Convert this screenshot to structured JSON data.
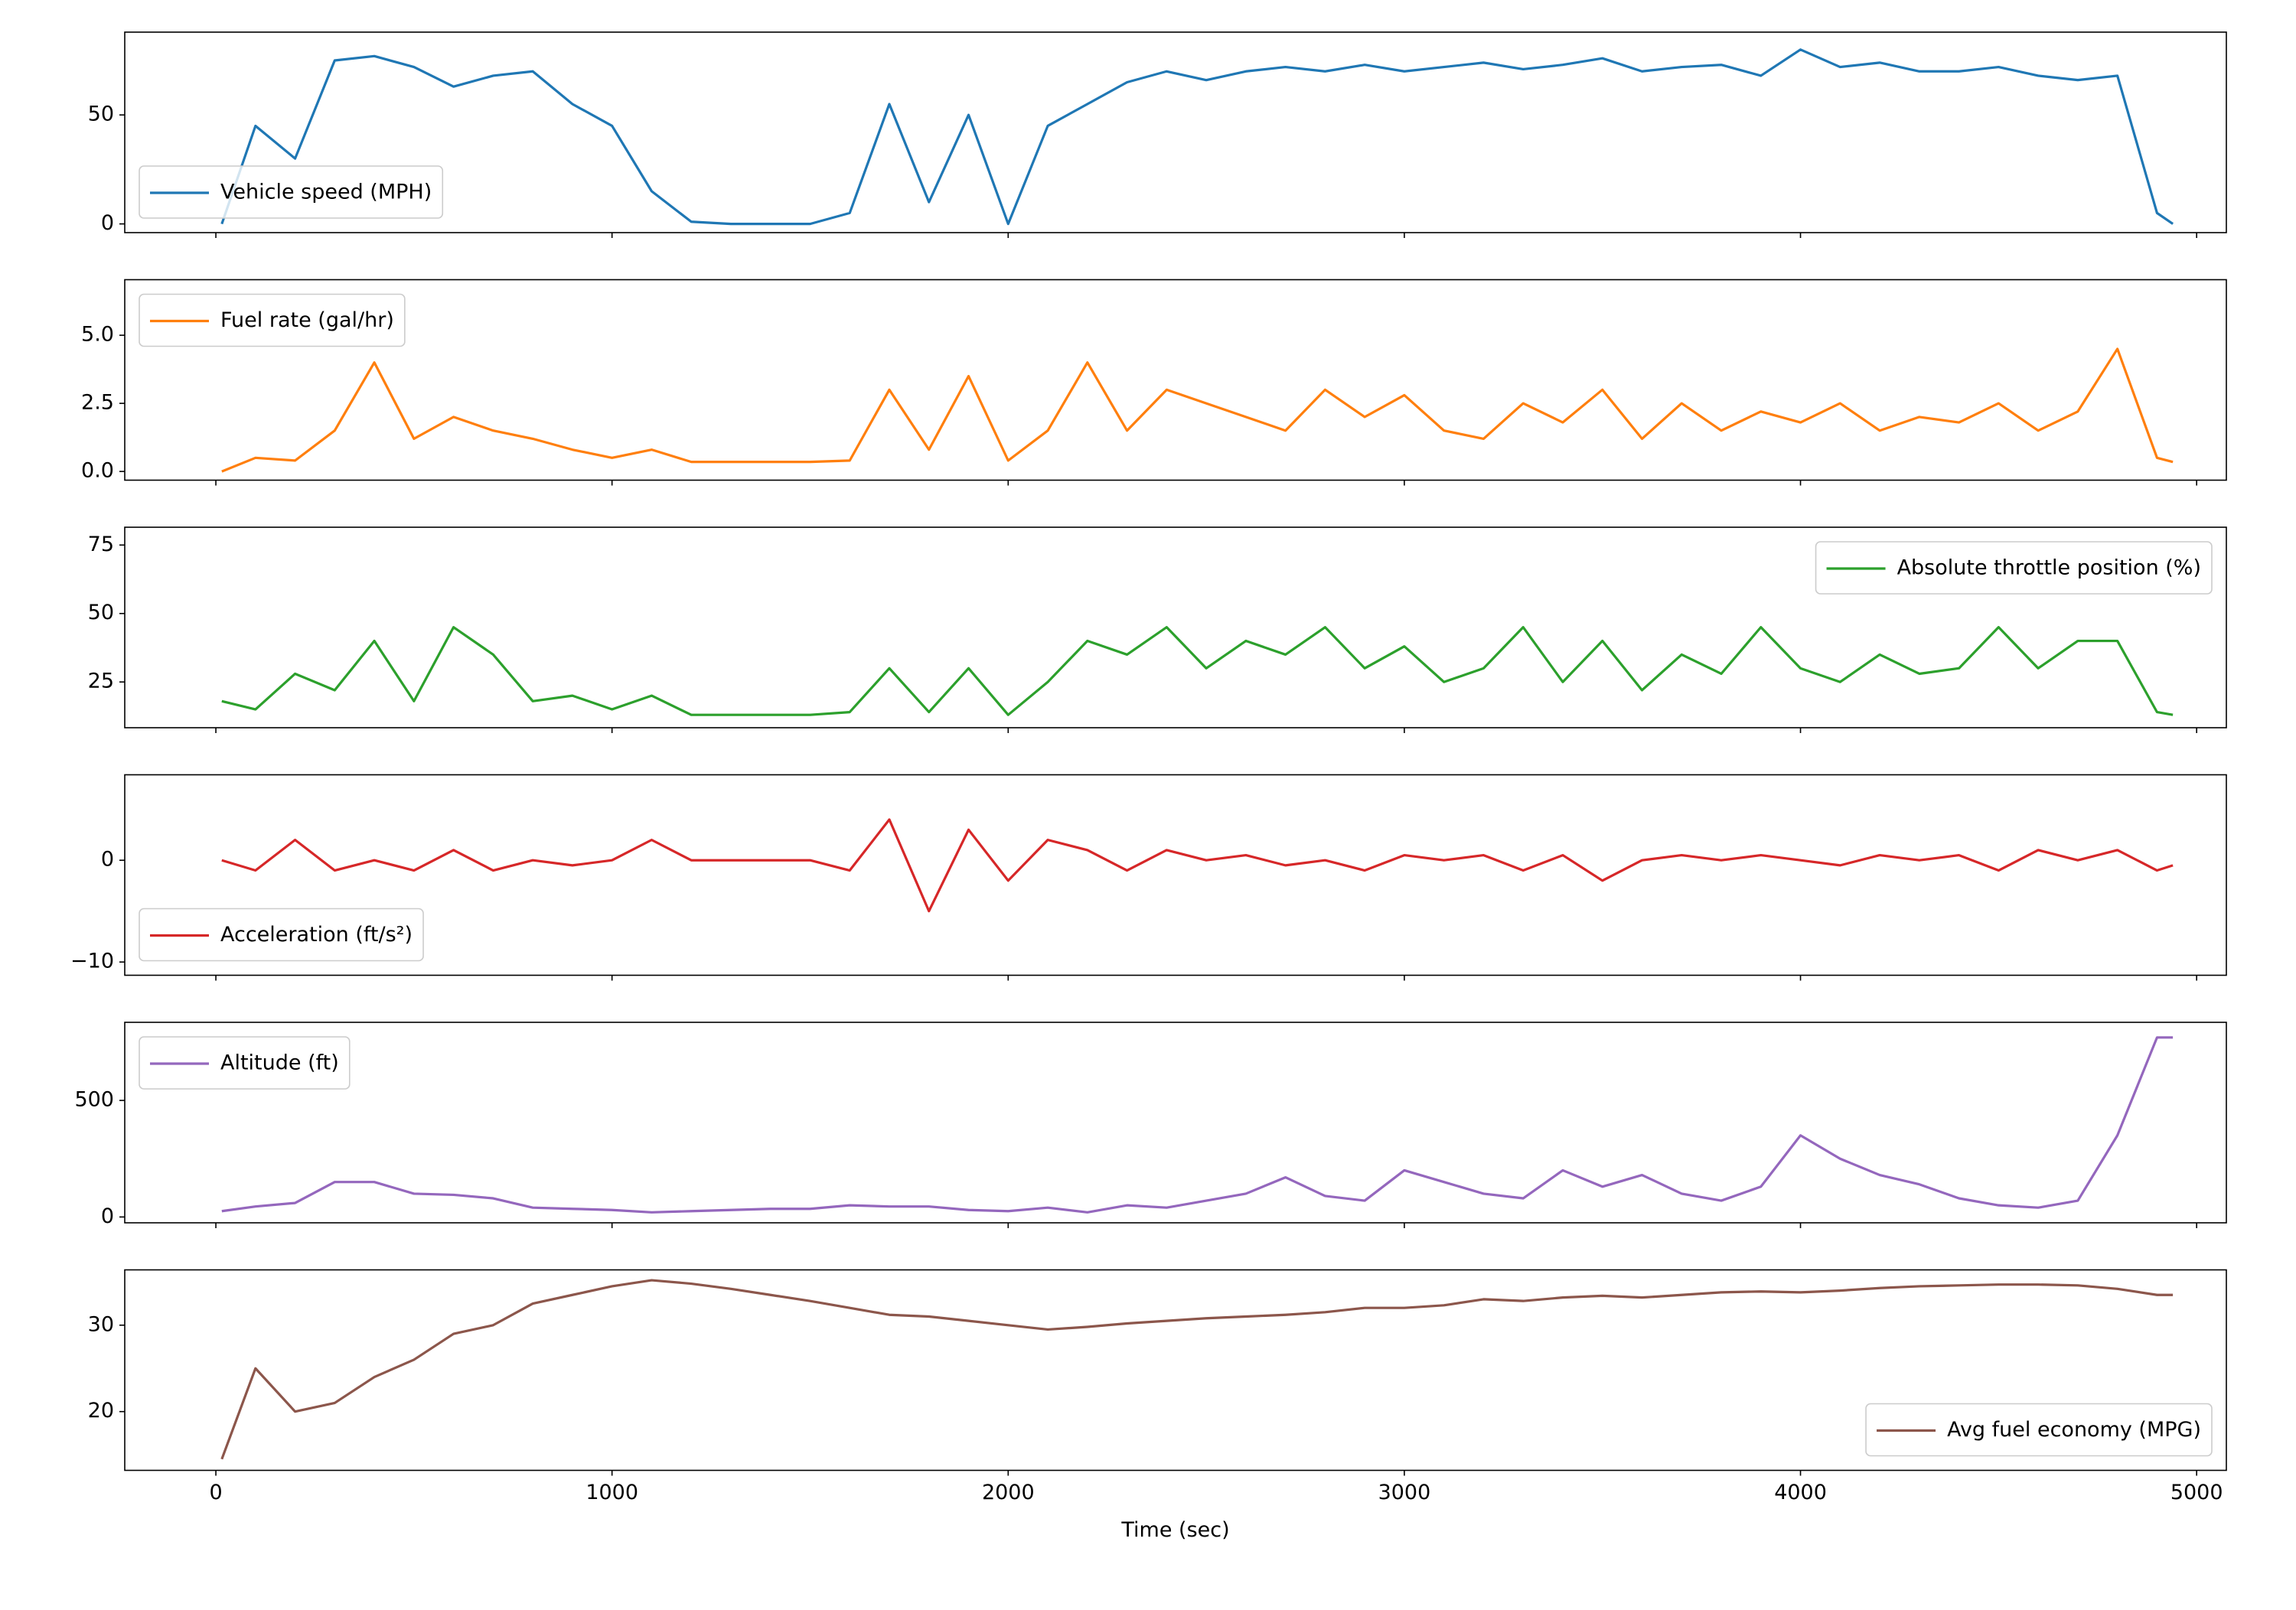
{
  "chart_data": [
    {
      "type": "line",
      "legend": "lower left",
      "x": [
        15,
        100,
        200,
        300,
        400,
        500,
        600,
        700,
        800,
        900,
        1000,
        1100,
        1200,
        1300,
        1400,
        1500,
        1600,
        1700,
        1800,
        1900,
        2000,
        2100,
        2200,
        2300,
        2400,
        2500,
        2600,
        2700,
        2800,
        2900,
        3000,
        3100,
        3200,
        3300,
        3400,
        3500,
        3600,
        3700,
        3800,
        3900,
        4000,
        4100,
        4200,
        4300,
        4400,
        4500,
        4600,
        4700,
        4800,
        4900,
        4940
      ],
      "series": [
        {
          "name": "Vehicle speed (MPH)",
          "color": "#1f77b4",
          "values": [
            0,
            45,
            30,
            75,
            77,
            72,
            63,
            68,
            70,
            55,
            45,
            15,
            1,
            0,
            0,
            0,
            5,
            55,
            10,
            50,
            0,
            45,
            55,
            65,
            70,
            66,
            70,
            72,
            70,
            73,
            70,
            72,
            74,
            71,
            73,
            76,
            70,
            72,
            73,
            68,
            80,
            72,
            74,
            70,
            70,
            72,
            68,
            66,
            68,
            5,
            0
          ]
        }
      ],
      "xlim": [
        -230,
        5075
      ],
      "xticks": [
        0,
        1000,
        2000,
        3000,
        4000,
        5000
      ],
      "ylim": [
        -4,
        88
      ],
      "yticks": [
        0,
        50
      ]
    },
    {
      "type": "line",
      "legend": "upper left",
      "x": [
        15,
        100,
        200,
        300,
        400,
        500,
        600,
        700,
        800,
        900,
        1000,
        1100,
        1200,
        1300,
        1400,
        1500,
        1600,
        1700,
        1800,
        1900,
        2000,
        2100,
        2200,
        2300,
        2400,
        2500,
        2600,
        2700,
        2800,
        2900,
        3000,
        3100,
        3200,
        3300,
        3400,
        3500,
        3600,
        3700,
        3800,
        3900,
        4000,
        4100,
        4200,
        4300,
        4400,
        4500,
        4600,
        4700,
        4800,
        4900,
        4940
      ],
      "series": [
        {
          "name": "Fuel rate (gal/hr)",
          "color": "#ff7f0e",
          "values": [
            0,
            0.5,
            0.4,
            1.5,
            4,
            1.2,
            2,
            1.5,
            1.2,
            0.8,
            0.5,
            0.8,
            0.35,
            0.35,
            0.35,
            0.35,
            0.4,
            3,
            0.8,
            3.5,
            0.4,
            1.5,
            4,
            1.5,
            3,
            2.5,
            2,
            1.5,
            3,
            2,
            2.8,
            1.5,
            1.2,
            2.5,
            1.8,
            3,
            1.2,
            2.5,
            1.5,
            2.2,
            1.8,
            2.5,
            1.5,
            2,
            1.8,
            2.5,
            1.5,
            2.2,
            4.5,
            0.5,
            0.35
          ]
        }
      ],
      "xlim": [
        -230,
        5075
      ],
      "xticks": [
        0,
        1000,
        2000,
        3000,
        4000,
        5000
      ],
      "ylim": [
        -0.32,
        7.04
      ],
      "yticks": [
        {
          "value": 0,
          "label": "0.0"
        },
        2.5,
        {
          "value": 5,
          "label": "5.0"
        }
      ]
    },
    {
      "type": "line",
      "legend": "upper right",
      "x": [
        15,
        100,
        200,
        300,
        400,
        500,
        600,
        700,
        800,
        900,
        1000,
        1100,
        1200,
        1300,
        1400,
        1500,
        1600,
        1700,
        1800,
        1900,
        2000,
        2100,
        2200,
        2300,
        2400,
        2500,
        2600,
        2700,
        2800,
        2900,
        3000,
        3100,
        3200,
        3300,
        3400,
        3500,
        3600,
        3700,
        3800,
        3900,
        4000,
        4100,
        4200,
        4300,
        4400,
        4500,
        4600,
        4700,
        4800,
        4900,
        4940
      ],
      "series": [
        {
          "name": "Absolute throttle position (%)",
          "color": "#2ca02c",
          "values": [
            18,
            15,
            28,
            22,
            40,
            18,
            45,
            35,
            18,
            20,
            15,
            20,
            13,
            13,
            13,
            13,
            14,
            30,
            14,
            30,
            13,
            25,
            40,
            35,
            45,
            30,
            40,
            35,
            45,
            30,
            38,
            25,
            30,
            45,
            25,
            40,
            22,
            35,
            28,
            45,
            30,
            25,
            35,
            28,
            30,
            45,
            30,
            40,
            40,
            14,
            13
          ]
        }
      ],
      "xlim": [
        -230,
        5075
      ],
      "xticks": [
        0,
        1000,
        2000,
        3000,
        4000,
        5000
      ],
      "ylim": [
        8.3,
        81.5
      ],
      "yticks": [
        25,
        50,
        75
      ]
    },
    {
      "type": "line",
      "legend": "lower left",
      "x": [
        15,
        100,
        200,
        300,
        400,
        500,
        600,
        700,
        800,
        900,
        1000,
        1100,
        1200,
        1300,
        1400,
        1500,
        1600,
        1700,
        1800,
        1900,
        2000,
        2100,
        2200,
        2300,
        2400,
        2500,
        2600,
        2700,
        2800,
        2900,
        3000,
        3100,
        3200,
        3300,
        3400,
        3500,
        3600,
        3700,
        3800,
        3900,
        4000,
        4100,
        4200,
        4300,
        4400,
        4500,
        4600,
        4700,
        4800,
        4900,
        4940
      ],
      "series": [
        {
          "name": "Acceleration (ft/s²)",
          "color": "#d62728",
          "values": [
            0,
            -1,
            2,
            -1,
            0,
            -1,
            1,
            -1,
            0,
            -0.5,
            0,
            2,
            0,
            0,
            0,
            0,
            -1,
            4,
            -5,
            3,
            -2,
            2,
            1,
            -1,
            1,
            0,
            0.5,
            -0.5,
            0,
            -1,
            0.5,
            0,
            0.5,
            -1,
            0.5,
            -2,
            0,
            0.5,
            0,
            0.5,
            0,
            -0.5,
            0.5,
            0,
            0.5,
            -1,
            1,
            0,
            1,
            -1,
            -0.5
          ]
        }
      ],
      "xlim": [
        -230,
        5075
      ],
      "xticks": [
        0,
        1000,
        2000,
        3000,
        4000,
        5000
      ],
      "ylim": [
        -11.3,
        8.4
      ],
      "yticks": [
        {
          "value": -10,
          "label": "−10"
        },
        0
      ]
    },
    {
      "type": "line",
      "legend": "upper left",
      "x": [
        15,
        100,
        200,
        300,
        400,
        500,
        600,
        700,
        800,
        900,
        1000,
        1100,
        1200,
        1300,
        1400,
        1500,
        1600,
        1700,
        1800,
        1900,
        2000,
        2100,
        2200,
        2300,
        2400,
        2500,
        2600,
        2700,
        2800,
        2900,
        3000,
        3100,
        3200,
        3300,
        3400,
        3500,
        3600,
        3700,
        3800,
        3900,
        4000,
        4100,
        4200,
        4300,
        4400,
        4500,
        4600,
        4700,
        4800,
        4900,
        4940
      ],
      "series": [
        {
          "name": "Altitude (ft)",
          "color": "#9467bd",
          "values": [
            25,
            45,
            60,
            150,
            150,
            100,
            95,
            80,
            40,
            35,
            30,
            20,
            25,
            30,
            35,
            35,
            50,
            45,
            45,
            30,
            25,
            40,
            20,
            50,
            40,
            70,
            100,
            170,
            90,
            70,
            200,
            150,
            100,
            80,
            200,
            130,
            180,
            100,
            70,
            130,
            350,
            250,
            180,
            140,
            80,
            50,
            40,
            70,
            350,
            770,
            770
          ]
        }
      ],
      "xlim": [
        -230,
        5075
      ],
      "xticks": [
        0,
        1000,
        2000,
        3000,
        4000,
        5000
      ],
      "ylim": [
        -25,
        835
      ],
      "yticks": [
        0,
        500
      ]
    },
    {
      "type": "line",
      "legend": "lower right",
      "xlabel": "Time (sec)",
      "x": [
        15,
        100,
        200,
        300,
        400,
        500,
        600,
        700,
        800,
        900,
        1000,
        1100,
        1200,
        1300,
        1400,
        1500,
        1600,
        1700,
        1800,
        1900,
        2000,
        2100,
        2200,
        2300,
        2400,
        2500,
        2600,
        2700,
        2800,
        2900,
        3000,
        3100,
        3200,
        3300,
        3400,
        3500,
        3600,
        3700,
        3800,
        3900,
        4000,
        4100,
        4200,
        4300,
        4400,
        4500,
        4600,
        4700,
        4800,
        4900,
        4940
      ],
      "series": [
        {
          "name": "Avg fuel economy (MPG)",
          "color": "#8c564b",
          "values": [
            14.5,
            25,
            20,
            21,
            24,
            26,
            29,
            30,
            32.5,
            33.5,
            34.5,
            35.2,
            34.8,
            34.2,
            33.5,
            32.8,
            32,
            31.2,
            31,
            30.5,
            30,
            29.5,
            29.8,
            30.2,
            30.5,
            30.8,
            31,
            31.2,
            31.5,
            32,
            32,
            32.3,
            33,
            32.8,
            33.2,
            33.4,
            33.2,
            33.5,
            33.8,
            33.9,
            33.8,
            34,
            34.3,
            34.5,
            34.6,
            34.7,
            34.7,
            34.6,
            34.2,
            33.5,
            33.5
          ]
        }
      ],
      "xlim": [
        -230,
        5075
      ],
      "xticks": [
        0,
        1000,
        2000,
        3000,
        4000,
        5000
      ],
      "ylim": [
        13.2,
        36.4
      ],
      "yticks": [
        20,
        30
      ]
    }
  ]
}
